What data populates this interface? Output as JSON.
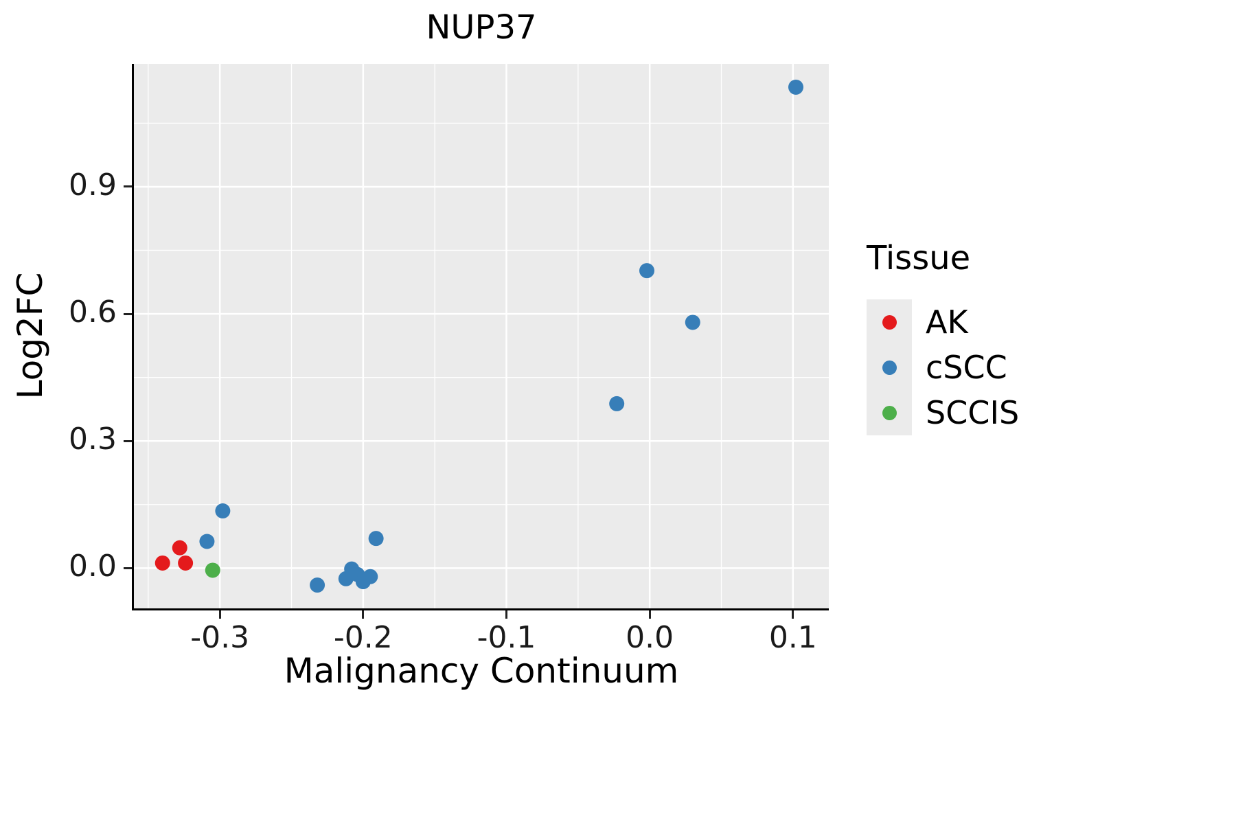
{
  "title": "NUP37",
  "axes": {
    "x_label": "Malignancy Continuum",
    "y_label": "Log2FC"
  },
  "legend": {
    "title": "Tissue",
    "items": [
      {
        "label": "AK",
        "color": "#e41a1c"
      },
      {
        "label": "cSCC",
        "color": "#377eb8"
      },
      {
        "label": "SCCIS",
        "color": "#4daf4a"
      }
    ]
  },
  "chart_data": {
    "type": "scatter",
    "title": "NUP37",
    "xlabel": "Malignancy Continuum",
    "ylabel": "Log2FC",
    "xlim": [
      -0.36,
      0.125
    ],
    "ylim": [
      -0.095,
      1.19
    ],
    "x_ticks": [
      -0.3,
      -0.2,
      -0.1,
      0.0,
      0.1
    ],
    "y_ticks": [
      0.0,
      0.3,
      0.6,
      0.9
    ],
    "grid": true,
    "panel_background": "#ebebeb",
    "grid_color": "#ffffff",
    "legend_position": "right",
    "point_radius": 11,
    "series": [
      {
        "name": "AK",
        "color": "#e41a1c",
        "points": [
          [
            -0.34,
            0.012
          ],
          [
            -0.328,
            0.048
          ],
          [
            -0.324,
            0.012
          ]
        ]
      },
      {
        "name": "cSCC",
        "color": "#377eb8",
        "points": [
          [
            0.102,
            1.135
          ],
          [
            -0.002,
            0.702
          ],
          [
            0.03,
            0.58
          ],
          [
            -0.023,
            0.388
          ],
          [
            -0.298,
            0.135
          ],
          [
            -0.309,
            0.063
          ],
          [
            -0.191,
            0.07
          ],
          [
            -0.232,
            -0.04
          ],
          [
            -0.208,
            -0.002
          ],
          [
            -0.212,
            -0.025
          ],
          [
            -0.204,
            -0.015
          ],
          [
            -0.2,
            -0.032
          ],
          [
            -0.195,
            -0.02
          ]
        ]
      },
      {
        "name": "SCCIS",
        "color": "#4daf4a",
        "points": [
          [
            -0.305,
            -0.005
          ]
        ]
      }
    ]
  }
}
